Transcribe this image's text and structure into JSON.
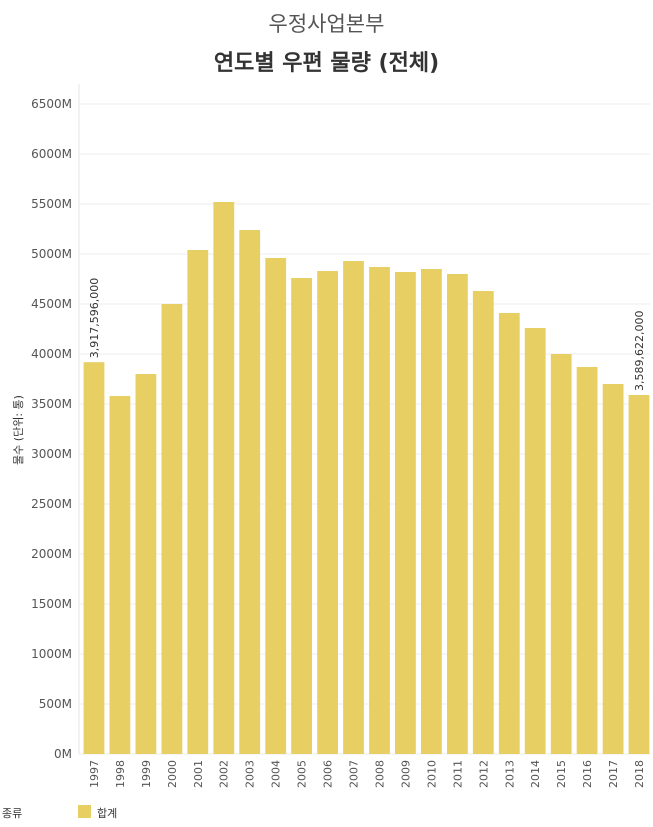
{
  "header": {
    "subtitle": "우정사업본부",
    "title": "연도별 우편 물량 (전체)"
  },
  "legend": {
    "title": "종류",
    "label": "합계",
    "color": "#e8cf64"
  },
  "chart_data": {
    "type": "bar",
    "ylabel": "물수 (단위: 통)",
    "xlabel": "",
    "ylim": [
      0,
      6700
    ],
    "y_ticks": [
      "0M",
      "500M",
      "1000M",
      "1500M",
      "2000M",
      "2500M",
      "3000M",
      "3500M",
      "4000M",
      "4500M",
      "5000M",
      "5500M",
      "6000M",
      "6500M"
    ],
    "categories": [
      "1997",
      "1998",
      "1999",
      "2000",
      "2001",
      "2002",
      "2003",
      "2004",
      "2005",
      "2006",
      "2007",
      "2008",
      "2009",
      "2010",
      "2011",
      "2012",
      "2013",
      "2014",
      "2015",
      "2016",
      "2017",
      "2018"
    ],
    "series": [
      {
        "name": "합계",
        "color": "#e8cf64",
        "values": [
          3918,
          3580,
          3800,
          4500,
          5040,
          5520,
          5240,
          4960,
          4760,
          4830,
          4930,
          4870,
          4820,
          4850,
          4800,
          4630,
          4410,
          4260,
          4000,
          3870,
          3700,
          3590
        ]
      }
    ],
    "annotations": [
      {
        "category": "1997",
        "text": "3,917,596,000"
      },
      {
        "category": "2018",
        "text": "3,589,622,000"
      }
    ],
    "grid": true
  }
}
